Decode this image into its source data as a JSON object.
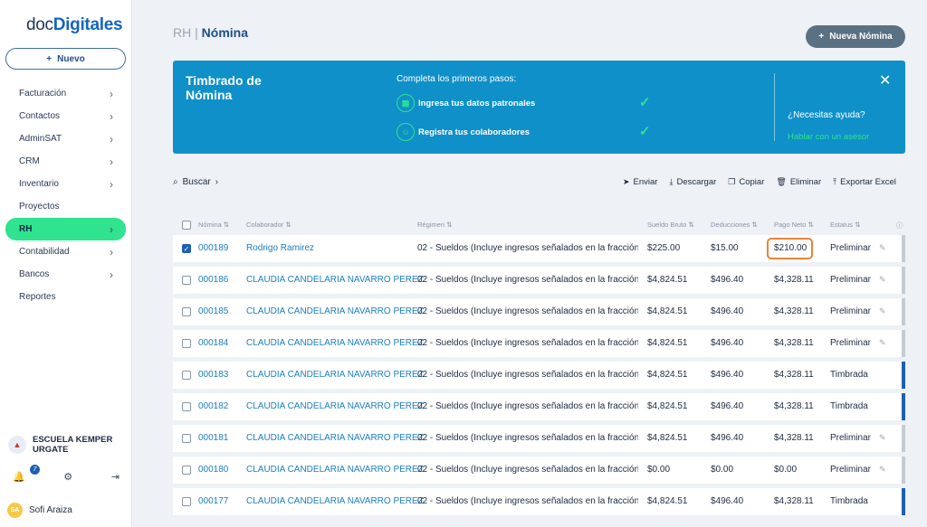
{
  "app": {
    "logo_prefix": "doc",
    "logo_suffix": "Digitales"
  },
  "sidebar": {
    "new_label": "Nuevo",
    "items": [
      {
        "label": "Facturación",
        "chevron": true
      },
      {
        "label": "Contactos",
        "chevron": true
      },
      {
        "label": "AdminSAT",
        "chevron": true
      },
      {
        "label": "CRM",
        "chevron": true
      },
      {
        "label": "Inventario",
        "chevron": true
      },
      {
        "label": "Proyectos",
        "chevron": false
      },
      {
        "label": "RH",
        "chevron": true,
        "active": true
      },
      {
        "label": "Contabilidad",
        "chevron": true
      },
      {
        "label": "Bancos",
        "chevron": true
      },
      {
        "label": "Reportes",
        "chevron": false
      }
    ],
    "org_name": "ESCUELA KEMPER URGATE",
    "notifications": "7",
    "user_initials": "SA",
    "user_name": "Sofi Araiza"
  },
  "header": {
    "crumb_parent": "RH",
    "crumb_current": "Nómina",
    "new_button": "Nueva Nómina"
  },
  "banner": {
    "title": "Timbrado de Nómina",
    "subtitle": "Completa los primeros pasos:",
    "step1": "Ingresa tus datos patronales",
    "step2": "Registra tus colaboradores",
    "help": "¿Necesitas ayuda?",
    "help_link": "Hablar con un asesor"
  },
  "toolbar": {
    "search": "Buscar",
    "send": "Enviar",
    "download": "Descargar",
    "copy": "Copiar",
    "delete": "Eliminar",
    "export": "Exportar Excel"
  },
  "table": {
    "columns": {
      "nomina": "Nómina",
      "colaborador": "Colaborador",
      "regimen": "Régimen",
      "bruto": "Sueldo Bruto",
      "deducciones": "Deducciones",
      "neto": "Pago Neto",
      "estatus": "Estatus"
    },
    "rows": [
      {
        "nomina": "000189",
        "colaborador": "Rodrigo Ramirez",
        "regimen": "02 - Sueldos (Incluye ingresos señalados en la fracción",
        "bruto": "$225.00",
        "deducciones": "$15.00",
        "neto": "$210.00",
        "estatus": "Preliminar",
        "checked": true
      },
      {
        "nomina": "000186",
        "colaborador": "CLAUDIA CANDELARIA NAVARRO PEREZ",
        "regimen": "02 - Sueldos (Incluye ingresos señalados en la fracción",
        "bruto": "$4,824.51",
        "deducciones": "$496.40",
        "neto": "$4,328.11",
        "estatus": "Preliminar"
      },
      {
        "nomina": "000185",
        "colaborador": "CLAUDIA CANDELARIA NAVARRO PEREZ",
        "regimen": "02 - Sueldos (Incluye ingresos señalados en la fracción",
        "bruto": "$4,824.51",
        "deducciones": "$496.40",
        "neto": "$4,328.11",
        "estatus": "Preliminar"
      },
      {
        "nomina": "000184",
        "colaborador": "CLAUDIA CANDELARIA NAVARRO PEREZ",
        "regimen": "02 - Sueldos (Incluye ingresos señalados en la fracción",
        "bruto": "$4,824.51",
        "deducciones": "$496.40",
        "neto": "$4,328.11",
        "estatus": "Preliminar"
      },
      {
        "nomina": "000183",
        "colaborador": "CLAUDIA CANDELARIA NAVARRO PEREZ",
        "regimen": "02 - Sueldos (Incluye ingresos señalados en la fracción",
        "bruto": "$4,824.51",
        "deducciones": "$496.40",
        "neto": "$4,328.11",
        "estatus": "Timbrada"
      },
      {
        "nomina": "000182",
        "colaborador": "CLAUDIA CANDELARIA NAVARRO PEREZ",
        "regimen": "02 - Sueldos (Incluye ingresos señalados en la fracción",
        "bruto": "$4,824.51",
        "deducciones": "$496.40",
        "neto": "$4,328.11",
        "estatus": "Timbrada"
      },
      {
        "nomina": "000181",
        "colaborador": "CLAUDIA CANDELARIA NAVARRO PEREZ",
        "regimen": "02 - Sueldos (Incluye ingresos señalados en la fracción",
        "bruto": "$4,824.51",
        "deducciones": "$496.40",
        "neto": "$4,328.11",
        "estatus": "Preliminar"
      },
      {
        "nomina": "000180",
        "colaborador": "CLAUDIA CANDELARIA NAVARRO PEREZ",
        "regimen": "02 - Sueldos (Incluye ingresos señalados en la fracción",
        "bruto": "$0.00",
        "deducciones": "$0.00",
        "neto": "$0.00",
        "estatus": "Preliminar"
      },
      {
        "nomina": "000177",
        "colaborador": "CLAUDIA CANDELARIA NAVARRO PEREZ",
        "regimen": "02 - Sueldos (Incluye ingresos señalados en la fracción",
        "bruto": "$4,824.51",
        "deducciones": "$496.40",
        "neto": "$4,328.11",
        "estatus": "Timbrada"
      }
    ]
  },
  "colors": {
    "accent": "#2fe38f",
    "banner": "#0f90c8",
    "timbrada": "#1e5fb3",
    "preliminar": "#c5cbd3",
    "highlight": "#e8833a"
  }
}
